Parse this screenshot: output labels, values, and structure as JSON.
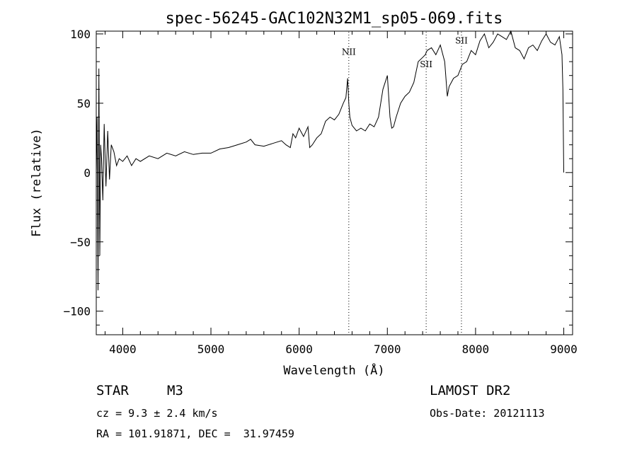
{
  "chart_data": {
    "type": "line",
    "title": "spec-56245-GAC102N32M1_sp05-069.fits",
    "xlabel": "Wavelength (Å)",
    "ylabel": "Flux (relative)",
    "xlim": [
      3700,
      9100
    ],
    "ylim": [
      -117,
      102
    ],
    "x_ticks": [
      4000,
      5000,
      6000,
      7000,
      8000,
      9000
    ],
    "x_tick_labels": [
      "4000",
      "5000",
      "6000",
      "7000",
      "8000",
      "9000"
    ],
    "y_ticks": [
      -100,
      -50,
      0,
      50,
      100
    ],
    "y_tick_labels": [
      "−100",
      "−50",
      "0",
      "50",
      "100"
    ],
    "grid": false,
    "line_color": "#000000",
    "series": [
      {
        "x": [
          3700,
          3710,
          3720,
          3730,
          3740,
          3750,
          3760,
          3775,
          3790,
          3810,
          3830,
          3850,
          3870,
          3900,
          3930,
          3960,
          4000,
          4050,
          4100,
          4150,
          4200,
          4300,
          4400,
          4500,
          4600,
          4700,
          4800,
          4900,
          5000,
          5100,
          5200,
          5300,
          5400,
          5450,
          5500,
          5600,
          5700,
          5800,
          5850,
          5900,
          5930,
          5960,
          6000,
          6050,
          6100,
          6120,
          6150,
          6200,
          6250,
          6300,
          6350,
          6400,
          6450,
          6500,
          6530,
          6550,
          6563,
          6575,
          6600,
          6650,
          6700,
          6750,
          6800,
          6850,
          6900,
          6950,
          7000,
          7030,
          7050,
          7070,
          7100,
          7150,
          7200,
          7250,
          7300,
          7350,
          7400,
          7430,
          7450,
          7500,
          7550,
          7600,
          7650,
          7680,
          7700,
          7750,
          7800,
          7850,
          7900,
          7950,
          8000,
          8050,
          8100,
          8150,
          8200,
          8250,
          8300,
          8350,
          8400,
          8450,
          8500,
          8550,
          8600,
          8650,
          8700,
          8750,
          8800,
          8850,
          8900,
          8950,
          8980,
          8990,
          9000
        ],
        "y": [
          0,
          40,
          -85,
          75,
          -60,
          20,
          10,
          -20,
          35,
          -10,
          30,
          -5,
          20,
          15,
          5,
          10,
          8,
          12,
          5,
          10,
          8,
          12,
          10,
          14,
          12,
          15,
          13,
          14,
          14,
          17,
          18,
          20,
          22,
          24,
          20,
          19,
          21,
          23,
          20,
          18,
          28,
          25,
          32,
          26,
          33,
          18,
          20,
          25,
          28,
          37,
          40,
          38,
          42,
          50,
          54,
          68,
          50,
          40,
          34,
          30,
          32,
          30,
          35,
          33,
          40,
          60,
          70,
          40,
          32,
          33,
          40,
          50,
          55,
          58,
          65,
          80,
          83,
          85,
          88,
          90,
          85,
          92,
          80,
          55,
          62,
          68,
          70,
          78,
          80,
          88,
          85,
          95,
          100,
          90,
          94,
          100,
          98,
          96,
          102,
          90,
          88,
          82,
          90,
          92,
          88,
          95,
          100,
          94,
          92,
          98,
          85,
          60,
          0
        ]
      }
    ],
    "annotations": [
      {
        "text": "NII",
        "x": 6563,
        "label_y": 85
      },
      {
        "text": "SII",
        "x": 7440,
        "label_y": 76
      },
      {
        "text": "SII",
        "x": 7840,
        "label_y": 93
      }
    ]
  },
  "info": {
    "object_class": "STAR",
    "subclass": "M3",
    "cz": "cz = 9.3 ± 2.4 km/s",
    "coords": "RA = 101.91871, DEC =  31.97459",
    "survey": "LAMOST DR2",
    "obs_date": "Obs-Date: 20121113"
  }
}
